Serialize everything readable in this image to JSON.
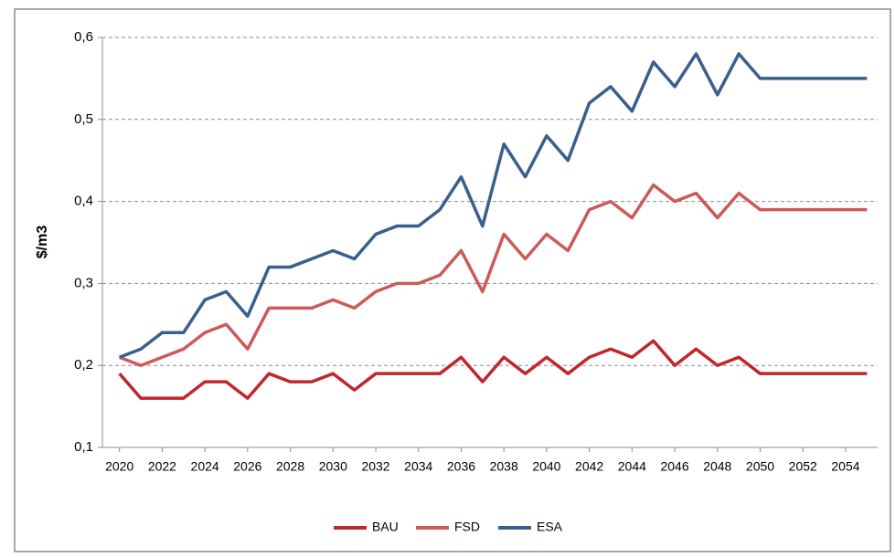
{
  "chart_data": {
    "type": "line",
    "y_label": "$/m3",
    "x": [
      2020,
      2021,
      2022,
      2023,
      2024,
      2025,
      2026,
      2027,
      2028,
      2029,
      2030,
      2031,
      2032,
      2033,
      2034,
      2035,
      2036,
      2037,
      2038,
      2039,
      2040,
      2041,
      2042,
      2043,
      2044,
      2045,
      2046,
      2047,
      2048,
      2049,
      2050,
      2051,
      2052,
      2053,
      2054,
      2055
    ],
    "series": [
      {
        "name": "BAU",
        "color": "#c0262d",
        "values": [
          0.19,
          0.16,
          0.16,
          0.16,
          0.18,
          0.18,
          0.16,
          0.19,
          0.18,
          0.18,
          0.19,
          0.17,
          0.19,
          0.19,
          0.19,
          0.19,
          0.21,
          0.18,
          0.21,
          0.19,
          0.21,
          0.19,
          0.21,
          0.22,
          0.21,
          0.23,
          0.2,
          0.22,
          0.2,
          0.21,
          0.19,
          0.19,
          0.19,
          0.19,
          0.19,
          0.19
        ]
      },
      {
        "name": "FSD",
        "color": "#cc5a5a",
        "values": [
          0.21,
          0.2,
          0.21,
          0.22,
          0.24,
          0.25,
          0.22,
          0.27,
          0.27,
          0.27,
          0.28,
          0.27,
          0.29,
          0.3,
          0.3,
          0.31,
          0.34,
          0.29,
          0.36,
          0.33,
          0.36,
          0.34,
          0.39,
          0.4,
          0.38,
          0.42,
          0.4,
          0.41,
          0.38,
          0.41,
          0.39,
          0.39,
          0.39,
          0.39,
          0.39,
          0.39
        ]
      },
      {
        "name": "ESA",
        "color": "#3a5f8f",
        "values": [
          0.21,
          0.22,
          0.24,
          0.24,
          0.28,
          0.29,
          0.26,
          0.32,
          0.32,
          0.33,
          0.34,
          0.33,
          0.36,
          0.37,
          0.37,
          0.39,
          0.43,
          0.37,
          0.47,
          0.43,
          0.48,
          0.45,
          0.52,
          0.54,
          0.51,
          0.57,
          0.54,
          0.58,
          0.53,
          0.58,
          0.55,
          0.55,
          0.55,
          0.55,
          0.55,
          0.55
        ]
      }
    ],
    "xlim": [
      2019.2,
      2055.5
    ],
    "xticks": [
      2020,
      2022,
      2024,
      2026,
      2028,
      2030,
      2032,
      2034,
      2036,
      2038,
      2040,
      2042,
      2044,
      2046,
      2048,
      2050,
      2052,
      2054
    ],
    "ylim": [
      0.1,
      0.6
    ],
    "yticks": [
      {
        "value": 0.1,
        "label": "0,1"
      },
      {
        "value": 0.2,
        "label": "0,2"
      },
      {
        "value": 0.3,
        "label": "0,3"
      },
      {
        "value": 0.4,
        "label": "0,4"
      },
      {
        "value": 0.5,
        "label": "0,5"
      },
      {
        "value": 0.6,
        "label": "0,6"
      }
    ],
    "grid": true,
    "legend": "bottom"
  }
}
